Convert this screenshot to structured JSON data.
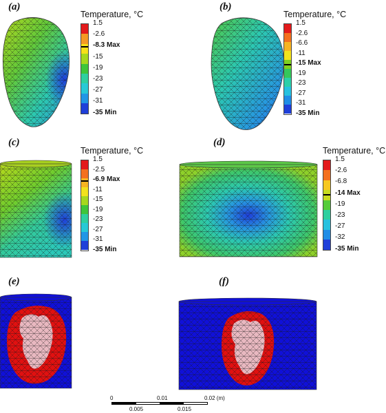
{
  "panels": {
    "a": {
      "label": "(a)"
    },
    "b": {
      "label": "(b)"
    },
    "c": {
      "label": "(c)"
    },
    "d": {
      "label": "(d)"
    },
    "e": {
      "label": "(e)"
    },
    "f": {
      "label": "(f)"
    }
  },
  "legends": {
    "a": {
      "title": "Temperature, °C",
      "ticks": [
        {
          "text": "1.5",
          "bold": false
        },
        {
          "text": "-2.6",
          "bold": false
        },
        {
          "text": "-8.3 Max",
          "bold": true
        },
        {
          "text": "-15",
          "bold": false
        },
        {
          "text": "-19",
          "bold": false
        },
        {
          "text": "-23",
          "bold": false
        },
        {
          "text": "-27",
          "bold": false
        },
        {
          "text": "-31",
          "bold": false
        },
        {
          "text": "-35 Min",
          "bold": true
        }
      ],
      "colors": [
        "#e31a1c",
        "#f49a24",
        "#f7e01a",
        "#a6d81e",
        "#3ec53a",
        "#2ecf9f",
        "#27c9d6",
        "#2196e6",
        "#1f3fd9"
      ],
      "max_marker_index": 2
    },
    "b": {
      "title": "Temperature, °C",
      "ticks": [
        {
          "text": "1.5",
          "bold": false
        },
        {
          "text": "-2.6",
          "bold": false
        },
        {
          "text": "-6.6",
          "bold": false
        },
        {
          "text": "-11",
          "bold": false
        },
        {
          "text": "-15 Max",
          "bold": true
        },
        {
          "text": "-19",
          "bold": false
        },
        {
          "text": "-23",
          "bold": false
        },
        {
          "text": "-27",
          "bold": false
        },
        {
          "text": "-31",
          "bold": false
        },
        {
          "text": "-35 Min",
          "bold": true
        }
      ],
      "colors": [
        "#e31a1c",
        "#f4701f",
        "#f7b422",
        "#f2e21c",
        "#7fd01f",
        "#35c75a",
        "#2ccfa8",
        "#27c1df",
        "#208de6",
        "#1f3fd9"
      ],
      "max_marker_index": 4
    },
    "c": {
      "title": "Temperature, °C",
      "ticks": [
        {
          "text": "1.5",
          "bold": false
        },
        {
          "text": "-2.5",
          "bold": false
        },
        {
          "text": "-6.9 Max",
          "bold": true
        },
        {
          "text": "-11",
          "bold": false
        },
        {
          "text": "-15",
          "bold": false
        },
        {
          "text": "-19",
          "bold": false
        },
        {
          "text": "-23",
          "bold": false
        },
        {
          "text": "-27",
          "bold": false
        },
        {
          "text": "-31",
          "bold": false
        },
        {
          "text": "-35 Min",
          "bold": true
        }
      ],
      "colors": [
        "#e31a1c",
        "#f4701f",
        "#f7b422",
        "#f2e21c",
        "#a6d81e",
        "#3ec53a",
        "#2ecf9f",
        "#27c9d6",
        "#2196e6",
        "#1f3fd9"
      ],
      "max_marker_index": 2
    },
    "d": {
      "title": "Temperature, °C",
      "ticks": [
        {
          "text": "1.5",
          "bold": false
        },
        {
          "text": "-2.6",
          "bold": false
        },
        {
          "text": "-6.8",
          "bold": false
        },
        {
          "text": "-14 Max",
          "bold": true
        },
        {
          "text": "-19",
          "bold": false
        },
        {
          "text": "-23",
          "bold": false
        },
        {
          "text": "-27",
          "bold": false
        },
        {
          "text": "-32",
          "bold": false
        },
        {
          "text": "-35 Min",
          "bold": true
        }
      ],
      "colors": [
        "#e31a1c",
        "#f4701f",
        "#f7c822",
        "#c8dc1e",
        "#55cc3a",
        "#2ecf9f",
        "#27c1df",
        "#208de6",
        "#1f3fd9"
      ],
      "max_marker_index": 3
    }
  },
  "scale_bar": {
    "top_labels": [
      "0",
      "0.01",
      "0.02 (m)"
    ],
    "bottom_labels": [
      "0.005",
      "0.015"
    ]
  },
  "colors": {
    "mesh_line": "#1a1a1a",
    "frozen_red": "#e01010",
    "tissue_pink": "#e8b8c0",
    "medium_blue": "#1010d8"
  }
}
